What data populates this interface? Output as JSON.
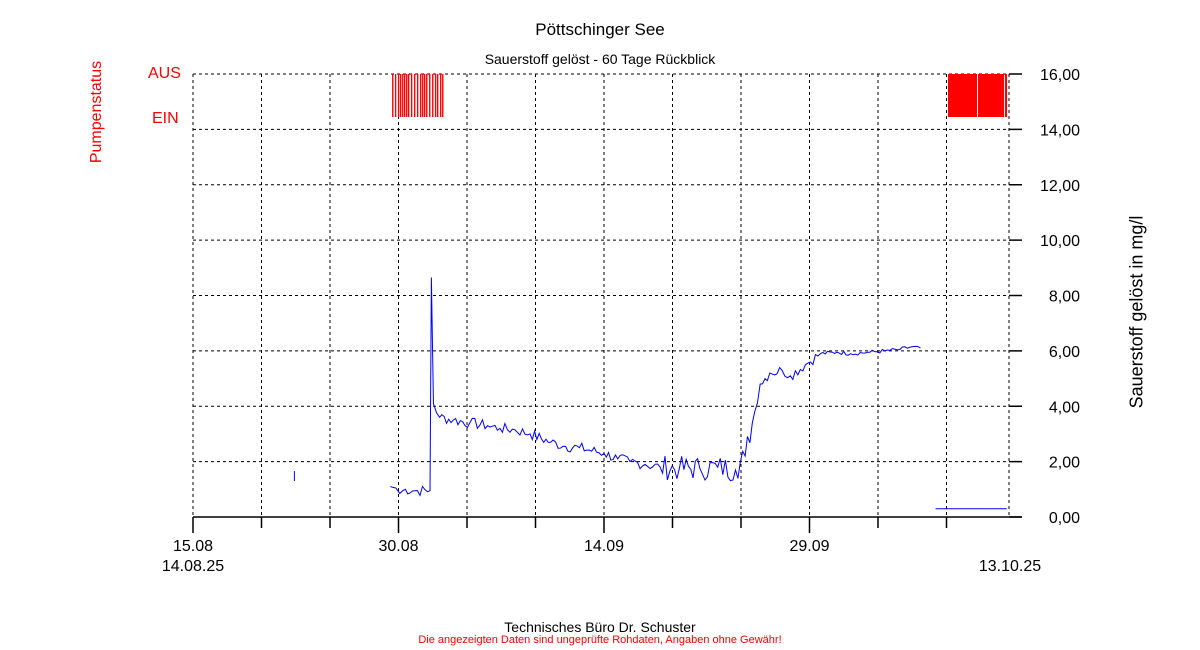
{
  "header": {
    "title": "Pöttschinger See",
    "subtitle": "Sauerstoff gelöst - 60 Tage Rückblick"
  },
  "pump": {
    "label": "Pumpenstatus",
    "off": "AUS",
    "on": "EIN"
  },
  "footer": {
    "company": "Technisches Büro Dr. Schuster",
    "disclaimer": "Die angezeigten Daten sind ungeprüfte Rohdaten, Angaben ohne Gewähr!"
  },
  "chart_data": {
    "type": "line",
    "title": "Pöttschinger See",
    "subtitle": "Sauerstoff gelöst - 60 Tage Rückblick",
    "xlabel": "",
    "ylabel": "Sauerstoff gelöst in mg/l",
    "ylim": [
      0,
      16
    ],
    "xlim_days": [
      0,
      59.3
    ],
    "x_unit": "days since 15.08.2025",
    "yticks": [
      "0,00",
      "2,00",
      "4,00",
      "6,00",
      "8,00",
      "10,00",
      "12,00",
      "14,00",
      "16,00"
    ],
    "xticks": [
      {
        "day": 0,
        "label": "15.08"
      },
      {
        "day": 15,
        "label": "30.08"
      },
      {
        "day": 30,
        "label": "14.09"
      },
      {
        "day": 45,
        "label": "29.09"
      }
    ],
    "minor_xticks_days": [
      5,
      10,
      20,
      25,
      35,
      40,
      50,
      55
    ],
    "range_start": "14.08.25",
    "range_end": "13.10.25",
    "grid": true,
    "colors": {
      "series": "#0000ff",
      "pump": "#ff0000"
    },
    "series": [
      {
        "name": "Sauerstoff gelöst",
        "segments": [
          [
            [
              7.4,
              1.66
            ],
            [
              7.4,
              1.3
            ]
          ],
          [
            [
              14.4,
              1.1
            ],
            [
              14.8,
              1.05
            ],
            [
              15.1,
              0.85
            ],
            [
              15.5,
              1.0
            ],
            [
              16.2,
              0.95
            ],
            [
              17.3,
              0.95
            ],
            [
              17.4,
              8.65
            ],
            [
              17.55,
              4.1
            ],
            [
              18.0,
              3.6
            ],
            [
              19.0,
              3.5
            ],
            [
              20.2,
              3.4
            ],
            [
              21.5,
              3.3
            ],
            [
              22.4,
              3.2
            ],
            [
              23.5,
              3.15
            ],
            [
              24.6,
              3.0
            ],
            [
              26.1,
              2.7
            ],
            [
              27.2,
              2.55
            ],
            [
              28.2,
              2.5
            ],
            [
              30.0,
              2.3
            ],
            [
              31.0,
              2.1
            ],
            [
              31.9,
              2.0
            ],
            [
              33.0,
              1.9
            ],
            [
              34.1,
              1.8
            ],
            [
              35.5,
              1.75
            ],
            [
              37.0,
              1.75
            ],
            [
              38.3,
              1.8
            ],
            [
              39.6,
              1.7
            ],
            [
              40.3,
              2.2
            ],
            [
              41.0,
              3.8
            ],
            [
              41.4,
              4.8
            ],
            [
              42.1,
              5.2
            ],
            [
              43.0,
              5.3
            ],
            [
              43.6,
              5.1
            ],
            [
              44.7,
              5.5
            ],
            [
              45.8,
              5.9
            ],
            [
              47.0,
              5.95
            ],
            [
              48.0,
              5.9
            ],
            [
              49.4,
              5.95
            ],
            [
              50.5,
              6.0
            ],
            [
              51.6,
              6.05
            ],
            [
              52.5,
              6.15
            ],
            [
              53.1,
              6.1
            ]
          ],
          [
            [
              54.2,
              0.3
            ],
            [
              59.4,
              0.3
            ]
          ]
        ]
      }
    ],
    "pump_on_intervals": [
      [
        14.53,
        14.63
      ],
      [
        14.74,
        14.84
      ],
      [
        14.96,
        15.06
      ],
      [
        15.11,
        15.21
      ],
      [
        15.26,
        15.36
      ],
      [
        15.4,
        15.5
      ],
      [
        15.55,
        15.65
      ],
      [
        15.69,
        15.79
      ],
      [
        15.91,
        16.01
      ],
      [
        16.13,
        16.23
      ],
      [
        16.35,
        16.45
      ],
      [
        16.57,
        16.67
      ],
      [
        16.72,
        16.82
      ],
      [
        16.86,
        16.96
      ],
      [
        17.01,
        17.11
      ],
      [
        17.23,
        17.33
      ],
      [
        17.45,
        17.55
      ],
      [
        17.66,
        17.76
      ],
      [
        17.81,
        17.91
      ],
      [
        18.03,
        18.13
      ],
      [
        18.18,
        18.28
      ],
      [
        55.11,
        57.23
      ],
      [
        57.3,
        59.2
      ],
      [
        59.27,
        59.42
      ]
    ]
  }
}
